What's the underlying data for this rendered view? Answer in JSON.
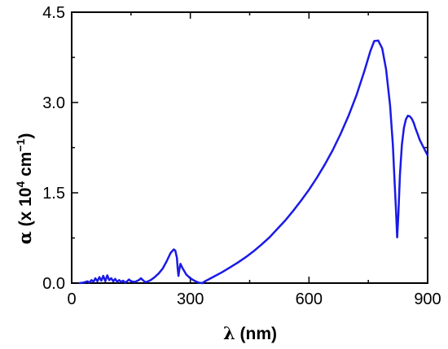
{
  "chart_data": {
    "type": "line",
    "title": "",
    "xlabel": {
      "symbol": "λ",
      "text": " (nm)"
    },
    "ylabel": {
      "symbol": "α",
      "prefix": " (x 10",
      "exp1": "4",
      "mid": " cm",
      "exp2": "−1",
      "suffix": ")"
    },
    "xlim": [
      0,
      900
    ],
    "ylim": [
      0,
      4.5
    ],
    "xticks": [
      0,
      300,
      600,
      900
    ],
    "xtick_labels": [
      "0",
      "300",
      "600",
      "900"
    ],
    "yticks": [
      0,
      1.5,
      3.0,
      4.5
    ],
    "ytick_labels": [
      "0.0",
      "1.5",
      "3.0",
      "4.5"
    ],
    "grid": false,
    "legend": "none",
    "series": [
      {
        "color": "#1a1ae6",
        "x": [
          20,
          30,
          40,
          45,
          50,
          55,
          60,
          65,
          70,
          75,
          80,
          85,
          90,
          95,
          100,
          105,
          110,
          115,
          120,
          125,
          130,
          135,
          140,
          145,
          150,
          160,
          170,
          175,
          180,
          185,
          190,
          200,
          210,
          220,
          230,
          240,
          250,
          258,
          262,
          266,
          268,
          270,
          272,
          275,
          280,
          290,
          300,
          310,
          320,
          330,
          340,
          360,
          380,
          400,
          420,
          440,
          460,
          480,
          500,
          520,
          540,
          560,
          580,
          600,
          620,
          640,
          660,
          680,
          700,
          720,
          740,
          755,
          765,
          775,
          785,
          795,
          805,
          812,
          816,
          820,
          823,
          826,
          830,
          835,
          840,
          845,
          850,
          855,
          860,
          865,
          870,
          875,
          880,
          890,
          900
        ],
        "y": [
          0.0,
          0.01,
          0.03,
          0.01,
          0.05,
          0.02,
          0.08,
          0.03,
          0.1,
          0.04,
          0.12,
          0.03,
          0.13,
          0.05,
          0.08,
          0.03,
          0.07,
          0.02,
          0.05,
          0.02,
          0.04,
          0.01,
          0.03,
          0.06,
          0.03,
          0.02,
          0.05,
          0.08,
          0.05,
          0.02,
          0.02,
          0.05,
          0.1,
          0.16,
          0.24,
          0.36,
          0.5,
          0.56,
          0.54,
          0.42,
          0.25,
          0.12,
          0.22,
          0.32,
          0.25,
          0.14,
          0.08,
          0.04,
          0.01,
          0.0,
          0.04,
          0.11,
          0.18,
          0.26,
          0.34,
          0.43,
          0.53,
          0.64,
          0.76,
          0.9,
          1.04,
          1.2,
          1.37,
          1.55,
          1.75,
          1.97,
          2.21,
          2.48,
          2.78,
          3.12,
          3.52,
          3.85,
          4.02,
          4.03,
          3.9,
          3.55,
          2.95,
          2.3,
          1.75,
          1.2,
          0.76,
          1.15,
          1.8,
          2.3,
          2.58,
          2.72,
          2.78,
          2.77,
          2.73,
          2.66,
          2.56,
          2.47,
          2.38,
          2.25,
          2.12
        ]
      }
    ]
  }
}
